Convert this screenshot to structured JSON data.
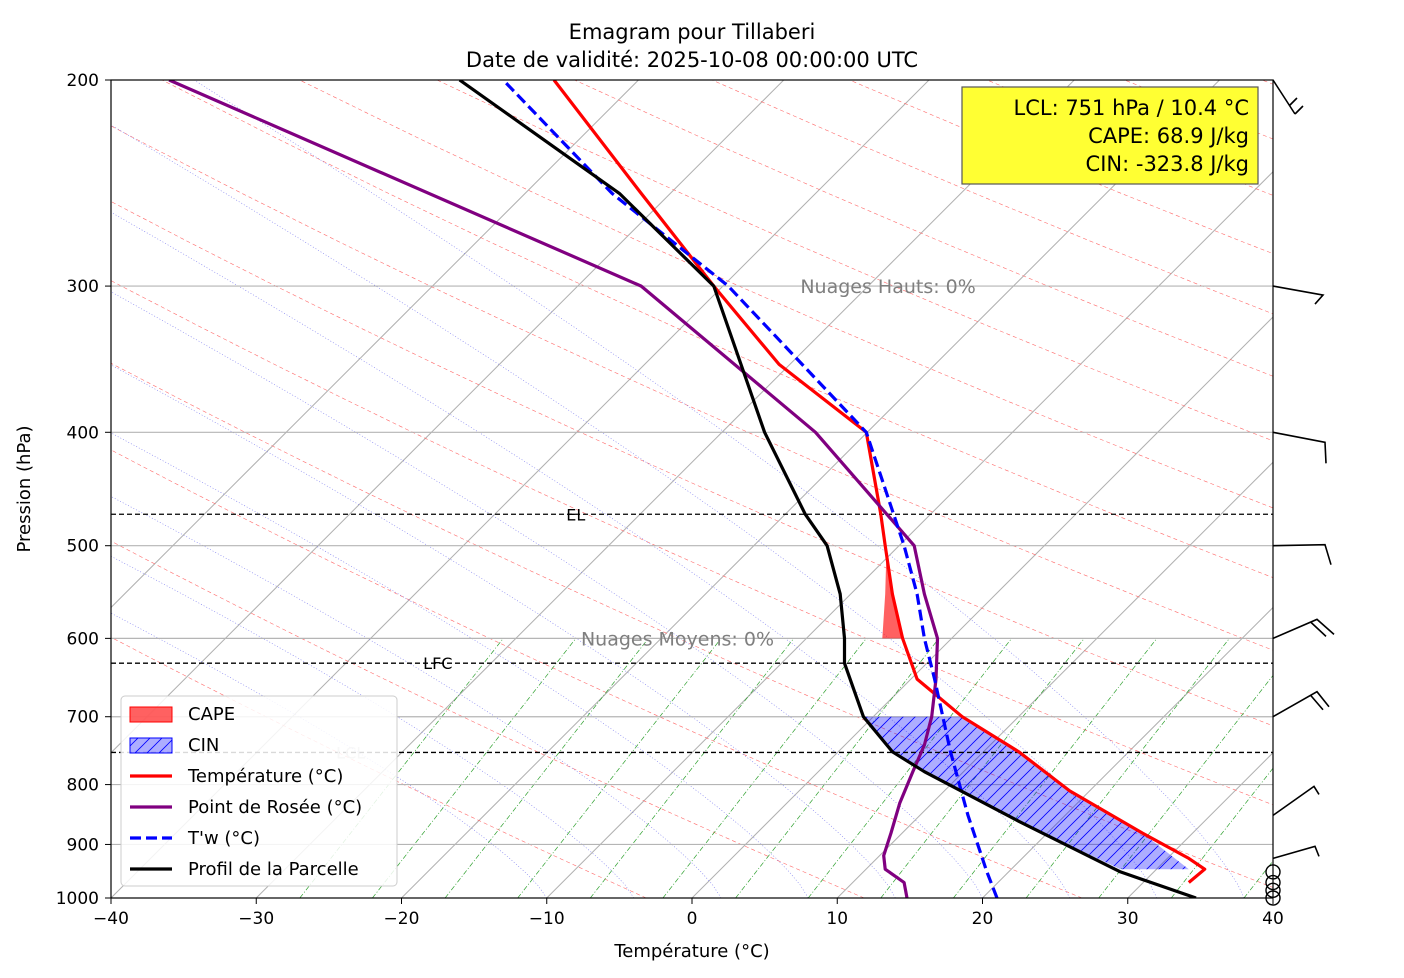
{
  "chart_data": {
    "type": "line",
    "title": "Emagram pour Tillaberi",
    "subtitle": "Date de validité: 2025-10-08 00:00:00 UTC",
    "xlabel": "Température (°C)",
    "ylabel": "Pression (hPa)",
    "xlim": [
      -40,
      40
    ],
    "ylim": [
      1000,
      200
    ],
    "y_scale": "log",
    "x_ticks": [
      -40,
      -30,
      -20,
      -10,
      0,
      10,
      20,
      30,
      40
    ],
    "x_tick_labels": [
      "−40",
      "−30",
      "−20",
      "−10",
      "0",
      "10",
      "20",
      "30",
      "40"
    ],
    "y_ticks": [
      1000,
      900,
      800,
      700,
      600,
      500,
      400,
      300,
      200
    ],
    "y_tick_labels": [
      "1000",
      "900",
      "800",
      "700",
      "600",
      "500",
      "400",
      "300",
      "200"
    ],
    "grid": true,
    "series": [
      {
        "name": "Température (°C)",
        "color": "#ff0000",
        "style": "solid",
        "points": [
          [
            34.2,
            970
          ],
          [
            35.3,
            945
          ],
          [
            34.2,
            925
          ],
          [
            31.0,
            880
          ],
          [
            26.0,
            810
          ],
          [
            22.5,
            750
          ],
          [
            18.6,
            700
          ],
          [
            15.5,
            650
          ],
          [
            14.5,
            600
          ],
          [
            13.8,
            550
          ],
          [
            13.3,
            500
          ],
          [
            13.0,
            470
          ],
          [
            12.0,
            400
          ],
          [
            6.0,
            350
          ],
          [
            1.5,
            300
          ],
          [
            -3.5,
            250
          ],
          [
            -9.5,
            200
          ]
        ]
      },
      {
        "name": "Point de Rosée (°C)",
        "color": "#800080",
        "style": "solid",
        "points": [
          [
            14.8,
            1000
          ],
          [
            14.6,
            970
          ],
          [
            13.3,
            945
          ],
          [
            13.2,
            920
          ],
          [
            13.7,
            880
          ],
          [
            14.3,
            830
          ],
          [
            15.2,
            780
          ],
          [
            16.0,
            740
          ],
          [
            16.5,
            700
          ],
          [
            16.8,
            650
          ],
          [
            16.9,
            600
          ],
          [
            16.0,
            550
          ],
          [
            15.3,
            500
          ],
          [
            8.5,
            400
          ],
          [
            -3.5,
            300
          ],
          [
            -36.0,
            200
          ]
        ]
      },
      {
        "name": "T'w (°C)",
        "color": "#0000ff",
        "style": "dashed",
        "points": [
          [
            21.0,
            1000
          ],
          [
            20.3,
            950
          ],
          [
            19.0,
            850
          ],
          [
            17.8,
            750
          ],
          [
            16.7,
            650
          ],
          [
            16.0,
            600
          ],
          [
            15.5,
            550
          ],
          [
            14.6,
            500
          ],
          [
            12.0,
            400
          ],
          [
            2.5,
            300
          ],
          [
            -5.5,
            250
          ],
          [
            -13.0,
            200
          ]
        ]
      },
      {
        "name": "Profil de la Parcelle",
        "color": "#000000",
        "style": "solid",
        "points": [
          [
            34.7,
            1000
          ],
          [
            29.5,
            950
          ],
          [
            22.5,
            860
          ],
          [
            16.0,
            780
          ],
          [
            13.8,
            750
          ],
          [
            11.8,
            700
          ],
          [
            10.5,
            630
          ],
          [
            10.5,
            600
          ],
          [
            10.2,
            550
          ],
          [
            9.3,
            500
          ],
          [
            7.8,
            470
          ],
          [
            5.0,
            400
          ],
          [
            1.5,
            300
          ],
          [
            -5.0,
            250
          ],
          [
            -16.0,
            200
          ]
        ]
      }
    ],
    "fills": [
      {
        "name": "CAPE",
        "color": "#ff0000",
        "hatch": false,
        "region": [
          [
            14.5,
            600
          ],
          [
            13.8,
            550
          ],
          [
            13.3,
            500
          ],
          [
            13.0,
            470
          ],
          [
            13.4,
            500
          ],
          [
            13.3,
            550
          ],
          [
            13.1,
            600
          ]
        ]
      },
      {
        "name": "CIN",
        "color": "#0000ff",
        "hatch": true,
        "region": [
          [
            34.2,
            945
          ],
          [
            31.0,
            880
          ],
          [
            26.0,
            810
          ],
          [
            22.5,
            750
          ],
          [
            18.6,
            700
          ],
          [
            11.8,
            700
          ],
          [
            13.8,
            750
          ],
          [
            16.0,
            780
          ],
          [
            22.5,
            860
          ],
          [
            29.5,
            945
          ]
        ]
      }
    ],
    "levels": [
      {
        "label": "EL",
        "pressure": 470,
        "label_x": -8
      },
      {
        "label": "LFC",
        "pressure": 630,
        "label_x": -17.5
      },
      {
        "label": "LCL",
        "pressure": 751,
        "label_x": -23.5
      }
    ],
    "annotations": [
      {
        "text": "Nuages Hauts: 0%",
        "x": 13.5,
        "p": 300
      },
      {
        "text": "Nuages Moyens: 0%",
        "x": -1.0,
        "p": 600
      }
    ],
    "info_box": {
      "lines": [
        "LCL: 751 hPa / 10.4 °C",
        "CAPE: 68.9 J/kg",
        "CIN: -323.8 J/kg"
      ],
      "background": "#ffff33"
    },
    "legend": {
      "location": "lower-left",
      "entries": [
        {
          "label": "CAPE",
          "kind": "patch",
          "color": "#ff0000"
        },
        {
          "label": "CIN",
          "kind": "hatch",
          "color": "#0000ff"
        },
        {
          "label": "Température (°C)",
          "kind": "line",
          "color": "#ff0000"
        },
        {
          "label": "Point de Rosée (°C)",
          "kind": "line",
          "color": "#800080"
        },
        {
          "label": "T'w (°C)",
          "kind": "dashed",
          "color": "#0000ff"
        },
        {
          "label": "Profil de la Parcelle",
          "kind": "line",
          "color": "#000000"
        }
      ]
    },
    "wind_barbs": [
      {
        "pressure": 200
      },
      {
        "pressure": 300
      },
      {
        "pressure": 400
      },
      {
        "pressure": 500
      },
      {
        "pressure": 600
      },
      {
        "pressure": 700
      },
      {
        "pressure": 850
      },
      {
        "pressure": 925
      },
      {
        "pressure": 950,
        "calm": true
      },
      {
        "pressure": 970,
        "calm": true
      },
      {
        "pressure": 985,
        "calm": true
      },
      {
        "pressure": 1000,
        "calm": true
      }
    ]
  }
}
